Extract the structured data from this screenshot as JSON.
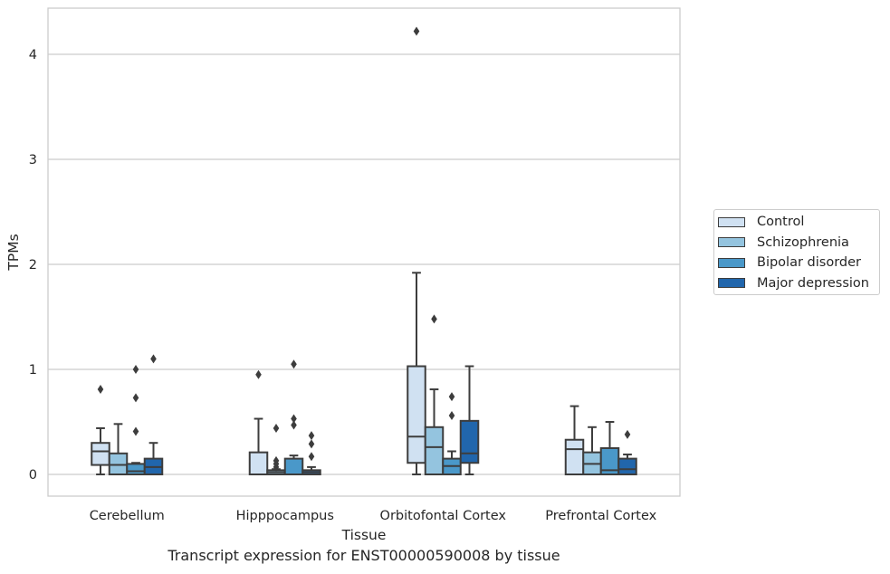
{
  "chart_data": {
    "type": "box",
    "xlabel": "Tissue",
    "ylabel": "TPMs",
    "caption": "Transcript expression for ENST00000590008 by tissue",
    "ylim": [
      -0.2,
      4.45
    ],
    "yticks": [
      0,
      1,
      2,
      3,
      4
    ],
    "grid": "horizontal",
    "legend_position": "right",
    "categories": [
      "Cerebellum",
      "Hipppocampus",
      "Orbitofontal Cortex",
      "Prefrontal Cortex"
    ],
    "series": [
      {
        "name": "Control",
        "color": "#d0e1f2",
        "boxes": [
          {
            "min": 0.0,
            "q1": 0.09,
            "median": 0.22,
            "q3": 0.3,
            "max": 0.44,
            "outliers": [
              0.81
            ]
          },
          {
            "min": 0.0,
            "q1": 0.0,
            "median": 0.0,
            "q3": 0.21,
            "max": 0.53,
            "outliers": [
              0.95
            ]
          },
          {
            "min": 0.0,
            "q1": 0.11,
            "median": 0.36,
            "q3": 1.03,
            "max": 1.92,
            "outliers": [
              4.22
            ]
          },
          {
            "min": 0.0,
            "q1": 0.0,
            "median": 0.24,
            "q3": 0.33,
            "max": 0.65,
            "outliers": []
          }
        ]
      },
      {
        "name": "Schizophrenia",
        "color": "#94c4df",
        "boxes": [
          {
            "min": 0.0,
            "q1": 0.0,
            "median": 0.09,
            "q3": 0.2,
            "max": 0.48,
            "outliers": []
          },
          {
            "min": 0.0,
            "q1": 0.0,
            "median": 0.02,
            "q3": 0.04,
            "max": 0.05,
            "outliers": [
              0.07,
              0.1,
              0.13,
              0.44
            ]
          },
          {
            "min": 0.0,
            "q1": 0.0,
            "median": 0.26,
            "q3": 0.45,
            "max": 0.81,
            "outliers": [
              1.48
            ]
          },
          {
            "min": 0.0,
            "q1": 0.0,
            "median": 0.1,
            "q3": 0.21,
            "max": 0.45,
            "outliers": []
          }
        ]
      },
      {
        "name": "Bipolar disorder",
        "color": "#4a98c9",
        "boxes": [
          {
            "min": 0.0,
            "q1": 0.0,
            "median": 0.03,
            "q3": 0.1,
            "max": 0.11,
            "outliers": [
              0.41,
              0.73,
              1.0
            ]
          },
          {
            "min": 0.0,
            "q1": 0.0,
            "median": 0.0,
            "q3": 0.15,
            "max": 0.18,
            "outliers": [
              0.47,
              0.53,
              1.05
            ]
          },
          {
            "min": 0.0,
            "q1": 0.0,
            "median": 0.08,
            "q3": 0.15,
            "max": 0.22,
            "outliers": [
              0.56,
              0.74
            ]
          },
          {
            "min": 0.0,
            "q1": 0.0,
            "median": 0.04,
            "q3": 0.25,
            "max": 0.5,
            "outliers": []
          }
        ]
      },
      {
        "name": "Major depression",
        "color": "#2166ac",
        "boxes": [
          {
            "min": 0.0,
            "q1": 0.0,
            "median": 0.07,
            "q3": 0.15,
            "max": 0.3,
            "outliers": [
              1.1
            ]
          },
          {
            "min": 0.0,
            "q1": 0.0,
            "median": 0.02,
            "q3": 0.04,
            "max": 0.07,
            "outliers": [
              0.17,
              0.29,
              0.37
            ]
          },
          {
            "min": 0.0,
            "q1": 0.11,
            "median": 0.2,
            "q3": 0.51,
            "max": 1.03,
            "outliers": []
          },
          {
            "min": 0.0,
            "q1": 0.0,
            "median": 0.05,
            "q3": 0.15,
            "max": 0.19,
            "outliers": [
              0.38
            ]
          }
        ]
      }
    ]
  }
}
